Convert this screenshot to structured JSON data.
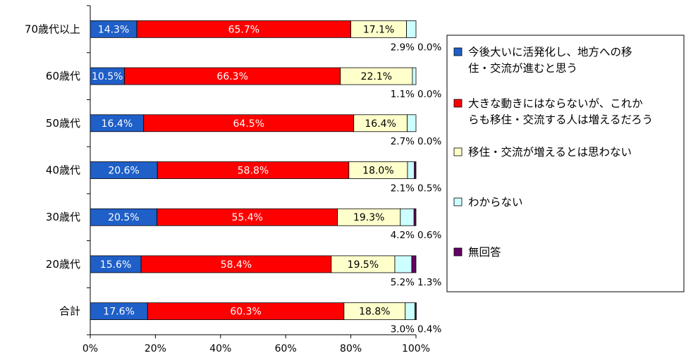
{
  "chart_data": {
    "type": "bar",
    "orientation": "horizontal",
    "stacked": true,
    "percent_stacked": true,
    "categories": [
      "70歳代以上",
      "60歳代",
      "50歳代",
      "40歳代",
      "30歳代",
      "20歳代",
      "合計"
    ],
    "series": [
      {
        "name": "今後大いに活発化し、地方への移住・交流が進むと思う",
        "legend_lines": [
          "今後大いに活発化し、地方への移",
          "住・交流が進むと思う"
        ],
        "color": "#1f5fc8",
        "label_color": "#ffffff",
        "values": [
          14.3,
          10.5,
          16.4,
          20.6,
          20.5,
          15.6,
          17.6
        ],
        "labels": [
          "14.3%",
          "10.5%",
          "16.4%",
          "20.6%",
          "20.5%",
          "15.6%",
          "17.6%"
        ]
      },
      {
        "name": "大きな動きにはならないが、これからも移住・交流する人は増えるだろう",
        "legend_lines": [
          "大きな動きにはならないが、これか",
          "らも移住・交流する人は増えるだろう"
        ],
        "color": "#ff0000",
        "label_color": "#ffffff",
        "values": [
          65.7,
          66.3,
          64.5,
          58.8,
          55.4,
          58.4,
          60.3
        ],
        "labels": [
          "65.7%",
          "66.3%",
          "64.5%",
          "58.8%",
          "55.4%",
          "58.4%",
          "60.3%"
        ]
      },
      {
        "name": "移住・交流が増えるとは思わない",
        "legend_lines": [
          "移住・交流が増えるとは思わない"
        ],
        "color": "#ffffcc",
        "label_color": "#000000",
        "values": [
          17.1,
          22.1,
          16.4,
          18.0,
          19.3,
          19.5,
          18.8
        ],
        "labels": [
          "17.1%",
          "22.1%",
          "16.4%",
          "18.0%",
          "19.3%",
          "19.5%",
          "18.8%"
        ]
      },
      {
        "name": "わからない",
        "legend_lines": [
          "わからない"
        ],
        "color": "#ccffff",
        "label_color": "#000000",
        "values": [
          2.9,
          1.1,
          2.7,
          2.1,
          4.2,
          5.2,
          3.0
        ],
        "labels": [
          "2.9%",
          "1.1%",
          "2.7%",
          "2.1%",
          "4.2%",
          "5.2%",
          "3.0%"
        ]
      },
      {
        "name": "無回答",
        "legend_lines": [
          "無回答"
        ],
        "color": "#660066",
        "label_color": "#000000",
        "values": [
          0.0,
          0.0,
          0.0,
          0.5,
          0.6,
          1.3,
          0.4
        ],
        "labels": [
          "0.0%",
          "0.0%",
          "0.0%",
          "0.5%",
          "0.6%",
          "1.3%",
          "0.4%"
        ]
      }
    ],
    "xlim": [
      0,
      100
    ],
    "xticks": [
      "0%",
      "20%",
      "40%",
      "60%",
      "80%",
      "100%"
    ],
    "grid": false,
    "legend_position": "right"
  }
}
